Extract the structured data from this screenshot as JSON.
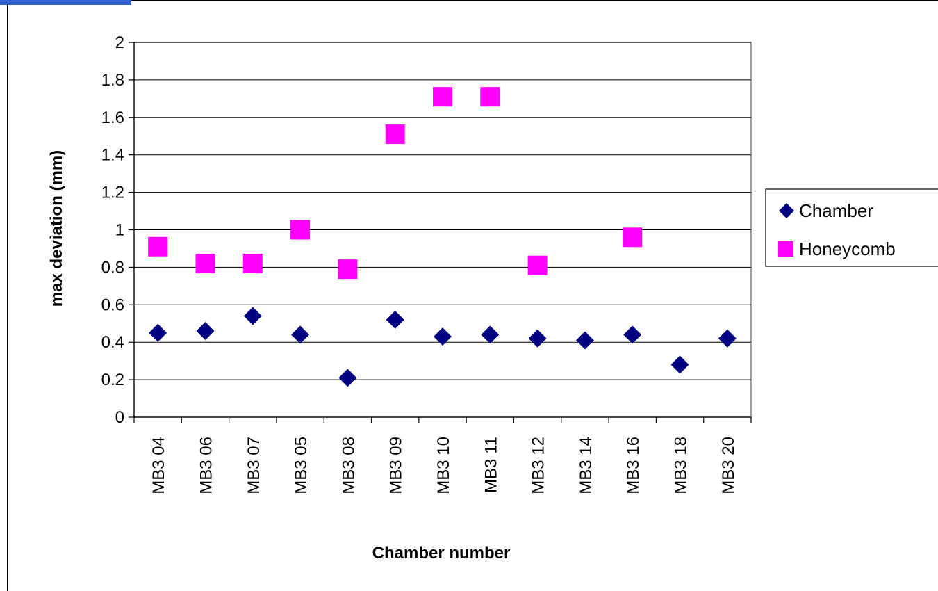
{
  "chart_data": {
    "type": "scatter",
    "categories": [
      "MB3 04",
      "MB3 06",
      "MB3 07",
      "MB3 05",
      "MB3 08",
      "MB3 09",
      "MB3 10",
      "MB3 11",
      "MB3 12",
      "MB3 14",
      "MB3 16",
      "MB3 18",
      "MB3 20"
    ],
    "series": [
      {
        "name": "Chamber",
        "marker": "diamond",
        "color": "#000080",
        "values": [
          0.45,
          0.46,
          0.54,
          0.44,
          0.21,
          0.52,
          0.43,
          0.44,
          0.42,
          0.41,
          0.44,
          0.28,
          0.42
        ]
      },
      {
        "name": "Honeycomb",
        "marker": "square",
        "color": "#ff00ff",
        "values": [
          0.91,
          0.82,
          0.82,
          1.0,
          0.79,
          1.51,
          1.71,
          1.71,
          0.81,
          null,
          0.96,
          null,
          null
        ]
      }
    ],
    "title": "",
    "xlabel": "Chamber number",
    "ylabel": "max deviation (mm)",
    "ylim": [
      0,
      2
    ],
    "yticks": [
      "0",
      "0.2",
      "0.4",
      "0.6",
      "0.8",
      "1",
      "1.2",
      "1.4",
      "1.6",
      "1.8",
      "2"
    ],
    "grid": true,
    "legend_position": "right"
  }
}
